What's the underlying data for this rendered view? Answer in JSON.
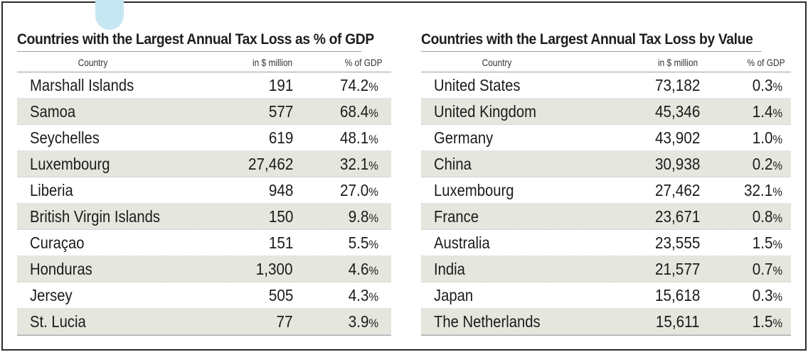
{
  "left_table": {
    "title": "Countries with the Largest Annual Tax Loss as % of GDP",
    "headers": {
      "country": "Country",
      "amount": "in $ million",
      "pct": "% of GDP"
    },
    "rows": [
      {
        "country": "Marshall Islands",
        "amount": "191",
        "pct": "74.2",
        "unit": "%"
      },
      {
        "country": "Samoa",
        "amount": "577",
        "pct": "68.4",
        "unit": "%"
      },
      {
        "country": "Seychelles",
        "amount": "619",
        "pct": "48.1",
        "unit": "%"
      },
      {
        "country": "Luxembourg",
        "amount": "27,462",
        "pct": "32.1",
        "unit": "%"
      },
      {
        "country": "Liberia",
        "amount": "948",
        "pct": "27.0",
        "unit": "%"
      },
      {
        "country": "British Virgin Islands",
        "amount": "150",
        "pct": "9.8",
        "unit": "%"
      },
      {
        "country": "Curaçao",
        "amount": "151",
        "pct": "5.5",
        "unit": "%"
      },
      {
        "country": "Honduras",
        "amount": "1,300",
        "pct": "4.6",
        "unit": "%"
      },
      {
        "country": "Jersey",
        "amount": "505",
        "pct": "4.3",
        "unit": "%"
      },
      {
        "country": "St. Lucia",
        "amount": "77",
        "pct": "3.9",
        "unit": "%"
      }
    ]
  },
  "right_table": {
    "title": "Countries with the Largest Annual Tax Loss by Value",
    "headers": {
      "country": "Country",
      "amount": "in $ million",
      "pct": "% of GDP"
    },
    "rows": [
      {
        "country": "United States",
        "amount": "73,182",
        "pct": "0.3",
        "unit": "%"
      },
      {
        "country": "United Kingdom",
        "amount": "45,346",
        "pct": "1.4",
        "unit": "%"
      },
      {
        "country": "Germany",
        "amount": "43,902",
        "pct": "1.0",
        "unit": "%"
      },
      {
        "country": "China",
        "amount": "30,938",
        "pct": "0.2",
        "unit": "%"
      },
      {
        "country": "Luxembourg",
        "amount": "27,462",
        "pct": "32.1",
        "unit": "%"
      },
      {
        "country": "France",
        "amount": "23,671",
        "pct": "0.8",
        "unit": "%"
      },
      {
        "country": "Australia",
        "amount": "23,555",
        "pct": "1.5",
        "unit": "%"
      },
      {
        "country": "India",
        "amount": "21,577",
        "pct": "0.7",
        "unit": "%"
      },
      {
        "country": "Japan",
        "amount": "15,618",
        "pct": "0.3",
        "unit": "%"
      },
      {
        "country": "The Netherlands",
        "amount": "15,611",
        "pct": "1.5",
        "unit": "%"
      }
    ]
  },
  "colors": {
    "row_shade": "#e5e6de",
    "rule": "#9aa0a3",
    "text": "#1b1b1b",
    "accent_bubble": "#c6e6f2"
  }
}
